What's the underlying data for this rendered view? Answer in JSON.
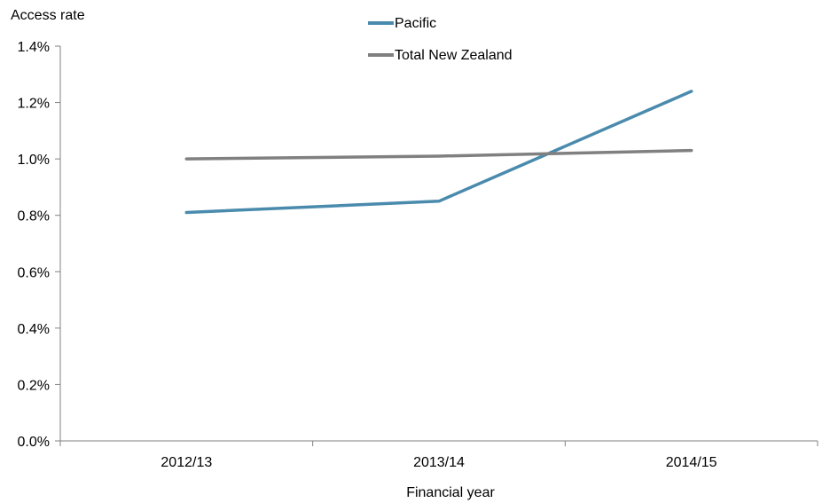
{
  "chart_data": {
    "type": "line",
    "ylabel": "Access rate",
    "xlabel": "Financial year",
    "categories": [
      "2012/13",
      "2013/14",
      "2014/15"
    ],
    "ylim": [
      0,
      0.014
    ],
    "yticks": [
      0,
      0.002,
      0.004,
      0.006,
      0.008,
      0.01,
      0.012,
      0.014
    ],
    "ytick_labels": [
      "0.0%",
      "0.2%",
      "0.4%",
      "0.6%",
      "0.8%",
      "1.0%",
      "1.2%",
      "1.4%"
    ],
    "grid": false,
    "legend": "top-center",
    "series": [
      {
        "name": "Pacific",
        "values": [
          0.0081,
          0.0085,
          0.0124
        ],
        "color": "#4a8bad"
      },
      {
        "name": "Total New Zealand",
        "values": [
          0.01,
          0.0101,
          0.0103
        ],
        "color": "#808080"
      }
    ]
  }
}
